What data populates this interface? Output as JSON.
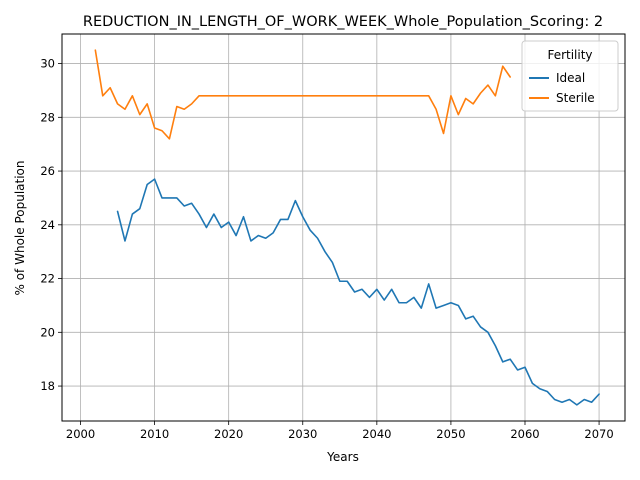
{
  "chart_data": {
    "type": "line",
    "title": "REDUCTION_IN_LENGTH_OF_WORK_WEEK_Whole_Population_Scoring: 2",
    "xlabel": "Years",
    "ylabel": "% of Whole Population",
    "xlim": [
      1997.5,
      2073.5
    ],
    "ylim": [
      16.7,
      31.1
    ],
    "xticks": [
      2000,
      2010,
      2020,
      2030,
      2040,
      2050,
      2060,
      2070
    ],
    "yticks": [
      18,
      20,
      22,
      24,
      26,
      28,
      30
    ],
    "grid": true,
    "legend": {
      "title": "Fertility",
      "placement": "top-right"
    },
    "series": [
      {
        "name": "Ideal",
        "color": "#1f77b4",
        "x": [
          2005,
          2006,
          2007,
          2008,
          2009,
          2010,
          2011,
          2012,
          2013,
          2014,
          2015,
          2016,
          2017,
          2018,
          2019,
          2020,
          2021,
          2022,
          2023,
          2024,
          2025,
          2026,
          2027,
          2028,
          2029,
          2030,
          2031,
          2032,
          2033,
          2034,
          2035,
          2036,
          2037,
          2038,
          2039,
          2040,
          2041,
          2042,
          2043,
          2044,
          2045,
          2046,
          2047,
          2048,
          2049,
          2050,
          2051,
          2052,
          2053,
          2054,
          2055,
          2056,
          2057,
          2058,
          2059,
          2060,
          2061,
          2062,
          2063,
          2064,
          2065,
          2066,
          2067,
          2068,
          2069,
          2070
        ],
        "y": [
          24.5,
          23.4,
          24.4,
          24.6,
          25.5,
          25.7,
          25.0,
          25.0,
          25.0,
          24.7,
          24.8,
          24.4,
          23.9,
          24.4,
          23.9,
          24.1,
          23.6,
          24.3,
          23.4,
          23.6,
          23.5,
          23.7,
          24.2,
          24.2,
          24.9,
          24.3,
          23.8,
          23.5,
          23.0,
          22.6,
          21.9,
          21.9,
          21.5,
          21.6,
          21.3,
          21.6,
          21.2,
          21.6,
          21.1,
          21.1,
          21.3,
          20.9,
          21.8,
          20.9,
          21.0,
          21.1,
          21.0,
          20.5,
          20.6,
          20.2,
          20.0,
          19.5,
          18.9,
          19.0,
          18.6,
          18.7,
          18.1,
          17.9,
          17.8,
          17.5,
          17.4,
          17.5,
          17.3,
          17.5,
          17.4,
          17.7
        ]
      },
      {
        "name": "Sterile",
        "color": "#ff7f0e",
        "x": [
          2002,
          2003,
          2004,
          2005,
          2006,
          2007,
          2008,
          2009,
          2010,
          2011,
          2012,
          2013,
          2014,
          2015,
          2016,
          2017,
          2018,
          2019,
          2020,
          2021,
          2022,
          2023,
          2024,
          2025,
          2026,
          2027,
          2028,
          2029,
          2030,
          2031,
          2032,
          2033,
          2034,
          2035,
          2036,
          2037,
          2038,
          2039,
          2040,
          2041,
          2042,
          2043,
          2044,
          2045,
          2046,
          2047,
          2048,
          2049,
          2050,
          2051,
          2052,
          2053,
          2054,
          2055,
          2056,
          2057,
          2058
        ],
        "y": [
          30.5,
          28.8,
          29.1,
          28.5,
          28.3,
          28.8,
          28.1,
          28.5,
          27.6,
          27.5,
          27.2,
          28.4,
          28.3,
          28.5,
          28.8,
          28.8,
          28.8,
          28.8,
          28.8,
          28.8,
          28.8,
          28.8,
          28.8,
          28.8,
          28.8,
          28.8,
          28.8,
          28.8,
          28.8,
          28.8,
          28.8,
          28.8,
          28.8,
          28.8,
          28.8,
          28.8,
          28.8,
          28.8,
          28.8,
          28.8,
          28.8,
          28.8,
          28.8,
          28.8,
          28.8,
          28.8,
          28.3,
          27.4,
          28.8,
          28.1,
          28.7,
          28.5,
          28.9,
          29.2,
          28.8,
          29.9,
          29.5
        ]
      }
    ]
  }
}
